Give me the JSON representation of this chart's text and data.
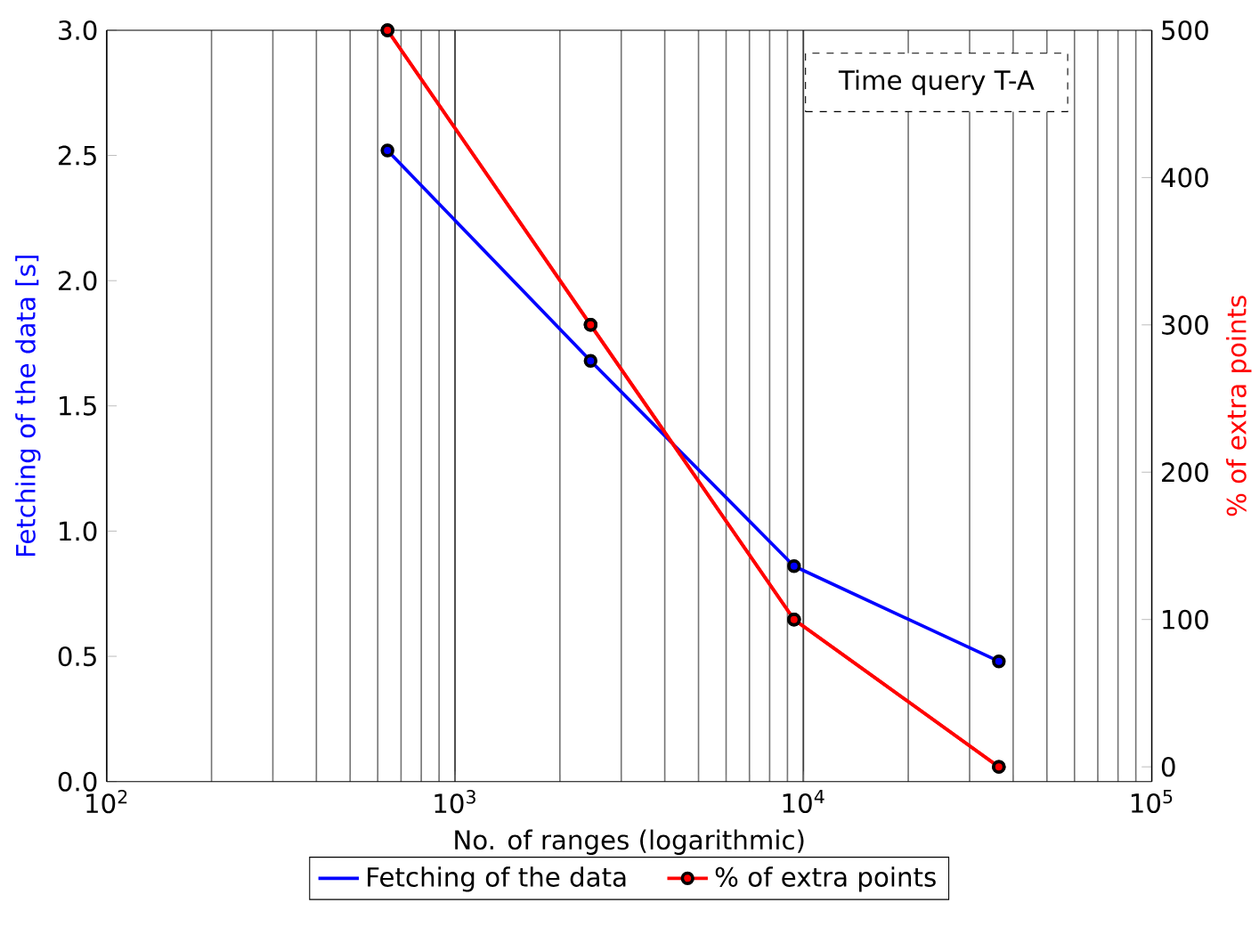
{
  "chart_data": {
    "type": "line",
    "xlabel": "No. of ranges (logarithmic)",
    "ylabel": "Fetching of the data [s]",
    "y2label": "% of extra points",
    "annotations": [
      "Time query T-A"
    ],
    "x": [
      640,
      2450,
      9400,
      36400
    ],
    "log": "x",
    "xlim": [
      100,
      100000
    ],
    "xticks": [
      {
        "value": 100,
        "label": "10$^{2}$"
      },
      {
        "value": 1000,
        "label": "10$^{3}$"
      },
      {
        "value": 10000,
        "label": "10$^{4}$"
      },
      {
        "value": 100000,
        "label": "10$^{5}$"
      }
    ],
    "ylim": [
      0,
      3
    ],
    "yticks": [
      {
        "value": 0,
        "label": "0.0"
      },
      {
        "value": 0.5,
        "label": "0.5"
      },
      {
        "value": 1,
        "label": "1.0"
      },
      {
        "value": 1.5,
        "label": "1.5"
      },
      {
        "value": 2,
        "label": "2.0"
      },
      {
        "value": 2.5,
        "label": "2.5"
      },
      {
        "value": 3,
        "label": "3.0"
      }
    ],
    "y2lim": [
      -10,
      500
    ],
    "y2ticks": [
      0,
      100,
      200,
      300,
      400,
      500
    ],
    "series": [
      {
        "name": "Fetching of the data",
        "color": "#0000ff",
        "values": [
          2.52,
          1.68,
          0.86,
          0.48
        ]
      },
      {
        "name": "% of extra points",
        "color": "#ff0000",
        "axis": "y2",
        "values": [
          500,
          300,
          100,
          0
        ]
      }
    ],
    "marker": "circle",
    "line_style": "solid",
    "grid": "x",
    "legend": "bottom"
  }
}
